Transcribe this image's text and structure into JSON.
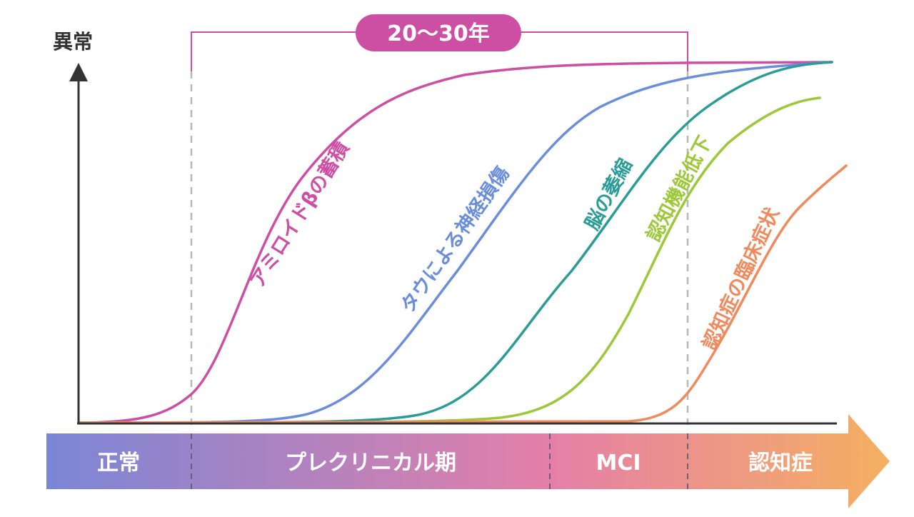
{
  "y_axis_label": "異常",
  "period_badge": "20〜30年",
  "curves": [
    {
      "label": "アミロイドβの蓄積",
      "color": "#cc4fa3"
    },
    {
      "label": "タウによる神経損傷",
      "color": "#6b8edb"
    },
    {
      "label": "脳の萎縮",
      "color": "#2a9c98"
    },
    {
      "label": "認知機能低下",
      "color": "#9cc83a"
    },
    {
      "label": "認知症の臨床症状",
      "color": "#f08a5d"
    }
  ],
  "stages": [
    {
      "label": "正常"
    },
    {
      "label": "プレクリニカル期"
    },
    {
      "label": "MCI"
    },
    {
      "label": "認知症"
    }
  ],
  "colors": {
    "axis": "#333333",
    "badge": "#cc4fa3",
    "divider": "#b8b8b8",
    "bar_start": "#7b86d6",
    "bar_mid": "#e57fa8",
    "bar_end": "#f5b060"
  }
}
